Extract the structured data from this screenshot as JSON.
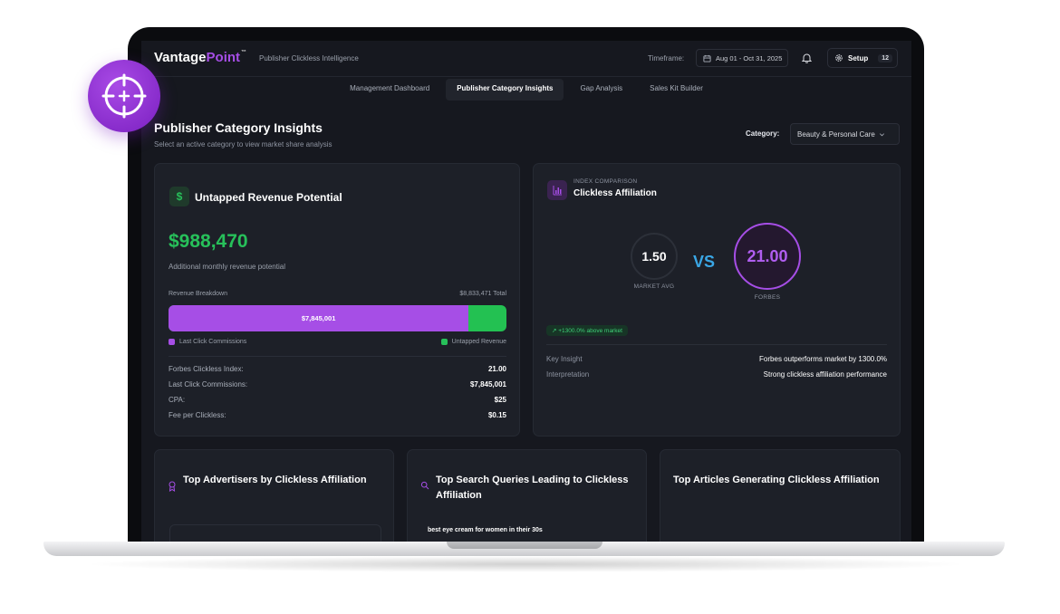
{
  "header": {
    "logo_main": "Vantage",
    "logo_accent": "Point",
    "logo_tm": "™",
    "tagline": "Publisher Clickless Intelligence",
    "timeframe_label": "Timeframe:",
    "date_range": "Aug 01 - Oct 31, 2025",
    "setup_label": "Setup",
    "setup_count": "12"
  },
  "tabs": [
    {
      "label": "Management Dashboard",
      "active": false
    },
    {
      "label": "Publisher Category Insights",
      "active": true
    },
    {
      "label": "Gap Analysis",
      "active": false
    },
    {
      "label": "Sales Kit Builder",
      "active": false
    }
  ],
  "page": {
    "title": "Publisher Category Insights",
    "subtitle": "Select an active category to view market share analysis",
    "category_label": "Category:",
    "category_value": "Beauty & Personal Care"
  },
  "revenue": {
    "icon": "$",
    "title": "Untapped Revenue Potential",
    "amount": "$988,470",
    "subtitle": "Additional monthly revenue potential",
    "breakdown_label": "Revenue Breakdown",
    "breakdown_total": "$8,833,471 Total",
    "bar_label": "$7,845,001",
    "last_click_share": 0.888,
    "legend_left": "Last Click Commissions",
    "legend_right": "Untapped Revenue",
    "stats": [
      {
        "label": "Forbes Clickless Index:",
        "value": "21.00"
      },
      {
        "label": "Last Click Commissions:",
        "value": "$7,845,001"
      },
      {
        "label": "CPA:",
        "value": "$25"
      },
      {
        "label": "Fee per Clickless:",
        "value": "$0.15"
      }
    ]
  },
  "index": {
    "overline": "INDEX COMPARISON",
    "title": "Clickless Affiliation",
    "market_value": "1.50",
    "market_label": "MARKET AVG",
    "vs": "VS",
    "forbes_value": "21.00",
    "forbes_label": "FORBES",
    "above_badge": "↗ +1300.0% above market",
    "key_insight_label": "Key Insight",
    "key_insight_value": "Forbes outperforms market by 1300.0%",
    "interpretation_label": "Interpretation",
    "interpretation_value": "Strong clickless affiliation performance"
  },
  "bottom": {
    "advertisers_title": "Top Advertisers by Clickless Affiliation",
    "queries_title": "Top Search Queries Leading to Clickless Affiliation",
    "articles_title": "Top Articles Generating Clickless Affiliation",
    "first_query": "best eye cream for women in their 30s"
  },
  "colors": {
    "purple": "#a64ee6",
    "green": "#27c05a",
    "blue": "#3aa7e6",
    "background": "#16181f"
  },
  "icons": [
    "crosshair-icon",
    "calendar-icon",
    "bell-icon",
    "gear-icon",
    "chevron-down-icon",
    "dollar-icon",
    "bar-chart-icon",
    "award-icon",
    "search-icon"
  ]
}
